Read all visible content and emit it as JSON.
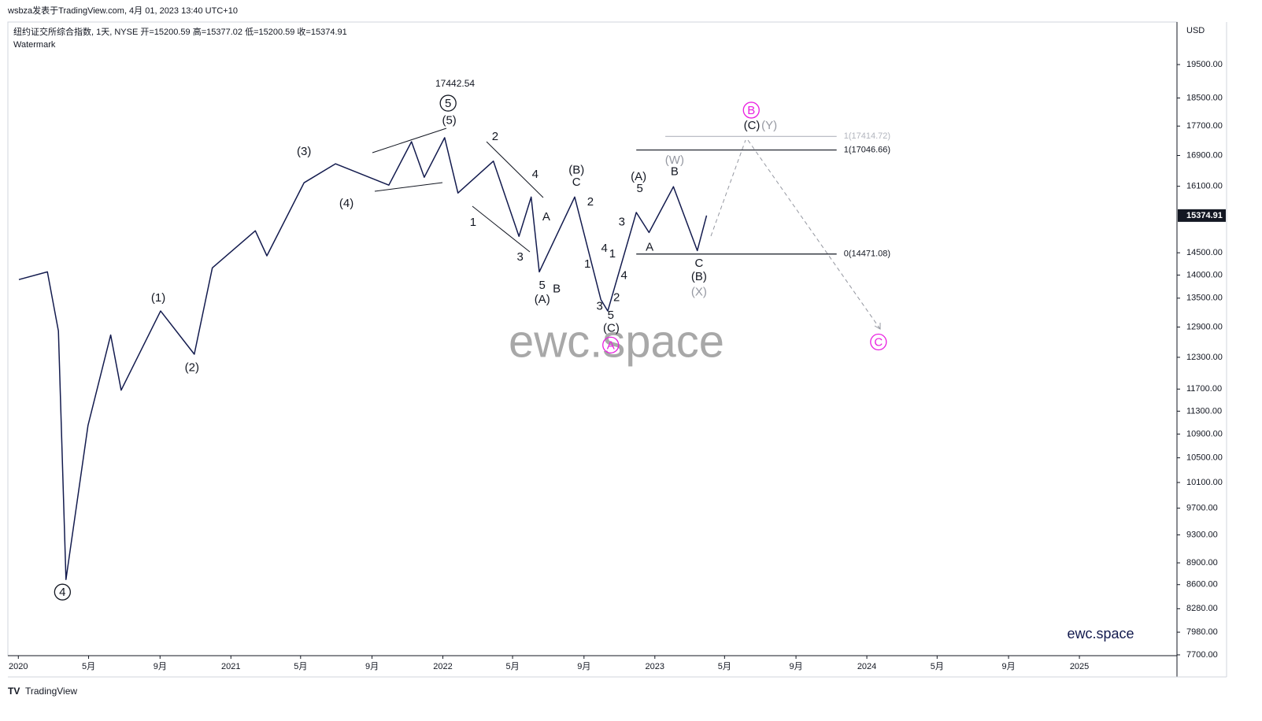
{
  "chart_data": {
    "type": "line",
    "source": "wsbza发表于TradingView.com, 4月 01, 2023 13:40 UTC+10",
    "title": "纽约证交所综合指数, 1天, NYSE  开=15200.59  高=15377.02  低=15200.59  收=15374.91",
    "subtitle": "Watermark",
    "currency": "USD",
    "watermark": "ewc.space",
    "brand": "ewc.space",
    "footer": "TradingView",
    "log_scale": true,
    "grid": false,
    "series": [
      {
        "name": "NYSE",
        "color": "#131b4e",
        "x": [
          "2020-01-02",
          "2020-02-20",
          "2020-03-10",
          "2020-03-23",
          "2020-04-30",
          "2020-06-08",
          "2020-06-26",
          "2020-09-02",
          "2020-10-30",
          "2020-11-30",
          "2021-02-12",
          "2021-03-04",
          "2021-05-07",
          "2021-06-30",
          "2021-09-30",
          "2021-11-08",
          "2021-11-30",
          "2022-01-04",
          "2022-01-27",
          "2022-03-29",
          "2022-05-12",
          "2022-06-02",
          "2022-06-16",
          "2022-08-16",
          "2022-09-30",
          "2022-10-12",
          "2022-11-30",
          "2022-12-22",
          "2023-02-02",
          "2023-03-15",
          "2023-03-31"
        ],
        "values": [
          13900,
          14070,
          12820,
          8670,
          11050,
          12740,
          11680,
          13230,
          12360,
          14160,
          15010,
          14430,
          16190,
          16680,
          16130,
          17270,
          16330,
          17380,
          15930,
          16750,
          14880,
          15830,
          14070,
          15830,
          13470,
          13230,
          15450,
          14970,
          16090,
          14550,
          15374.91
        ]
      }
    ],
    "last_price": 15374.91,
    "levels": [
      {
        "label": "1(17414.72)",
        "value": 17414.72,
        "from": "2023-01-19",
        "to": "2023-11-10",
        "color": "#b2b5be"
      },
      {
        "label": "1(17046.66)",
        "value": 17046.66,
        "from": "2022-11-30",
        "to": "2023-11-10",
        "color": "#131722"
      },
      {
        "label": "0(14471.08)",
        "value": 14471.08,
        "from": "2022-11-30",
        "to": "2023-11-10",
        "color": "#131722"
      }
    ],
    "annotations": [
      {
        "text": "5",
        "x": "2022-01-10",
        "y": 18350,
        "style": "circle",
        "color": "#131722"
      },
      {
        "text": "17442.54",
        "x": "2022-01-22",
        "y": 18930,
        "style": "plain",
        "color": "#131722"
      },
      {
        "text": "(5)",
        "x": "2022-01-12",
        "y": 17870,
        "style": "plain",
        "color": "#131722"
      },
      {
        "text": "(3)",
        "x": "2021-05-07",
        "y": 17020,
        "style": "plain",
        "color": "#131722"
      },
      {
        "text": "(4)",
        "x": "2021-07-19",
        "y": 15680,
        "style": "plain",
        "color": "#131722"
      },
      {
        "text": "(1)",
        "x": "2020-08-29",
        "y": 13510,
        "style": "plain",
        "color": "#131722"
      },
      {
        "text": "(2)",
        "x": "2020-10-26",
        "y": 12110,
        "style": "plain",
        "color": "#131722"
      },
      {
        "text": "4",
        "x": "2020-03-17",
        "y": 8500,
        "style": "circle",
        "color": "#131722"
      },
      {
        "text": "2",
        "x": "2022-04-01",
        "y": 17420,
        "style": "plain",
        "color": "#131722"
      },
      {
        "text": "1",
        "x": "2022-02-22",
        "y": 15220,
        "style": "plain",
        "color": "#131722"
      },
      {
        "text": "4",
        "x": "2022-06-09",
        "y": 16410,
        "style": "plain",
        "color": "#131722"
      },
      {
        "text": "A",
        "x": "2022-06-28",
        "y": 15350,
        "style": "plain",
        "color": "#131722"
      },
      {
        "text": "3",
        "x": "2022-05-14",
        "y": 14410,
        "style": "plain",
        "color": "#131722"
      },
      {
        "text": "5",
        "x": "2022-06-21",
        "y": 13780,
        "style": "plain",
        "color": "#131722"
      },
      {
        "text": "(A)",
        "x": "2022-06-21",
        "y": 13480,
        "style": "plain",
        "color": "#131722"
      },
      {
        "text": "B",
        "x": "2022-07-16",
        "y": 13710,
        "style": "plain",
        "color": "#131722"
      },
      {
        "text": "(B)",
        "x": "2022-08-19",
        "y": 16530,
        "style": "plain",
        "color": "#131722"
      },
      {
        "text": "C",
        "x": "2022-08-19",
        "y": 16210,
        "style": "plain",
        "color": "#131722"
      },
      {
        "text": "2",
        "x": "2022-09-12",
        "y": 15720,
        "style": "plain",
        "color": "#131722"
      },
      {
        "text": "1",
        "x": "2022-09-07",
        "y": 14250,
        "style": "plain",
        "color": "#131722"
      },
      {
        "text": "4",
        "x": "2022-10-06",
        "y": 14610,
        "style": "plain",
        "color": "#131722"
      },
      {
        "text": "3",
        "x": "2022-09-28",
        "y": 13340,
        "style": "plain",
        "color": "#131722"
      },
      {
        "text": "1",
        "x": "2022-10-20",
        "y": 14480,
        "style": "plain",
        "color": "#131722"
      },
      {
        "text": "2",
        "x": "2022-10-27",
        "y": 13520,
        "style": "plain",
        "color": "#131722"
      },
      {
        "text": "5",
        "x": "2022-10-17",
        "y": 13150,
        "style": "plain",
        "color": "#131722"
      },
      {
        "text": "(C)",
        "x": "2022-10-18",
        "y": 12880,
        "style": "plain",
        "color": "#131722"
      },
      {
        "text": "A",
        "x": "2022-10-17",
        "y": 12540,
        "style": "circle",
        "color": "#e91ee0"
      },
      {
        "text": "3",
        "x": "2022-11-05",
        "y": 15230,
        "style": "plain",
        "color": "#131722"
      },
      {
        "text": "4",
        "x": "2022-11-09",
        "y": 14000,
        "style": "plain",
        "color": "#131722"
      },
      {
        "text": "(A)",
        "x": "2022-12-04",
        "y": 16350,
        "style": "plain",
        "color": "#131722"
      },
      {
        "text": "5",
        "x": "2022-12-06",
        "y": 16050,
        "style": "plain",
        "color": "#131722"
      },
      {
        "text": "A",
        "x": "2022-12-23",
        "y": 14640,
        "style": "plain",
        "color": "#131722"
      },
      {
        "text": "(W)",
        "x": "2023-02-04",
        "y": 16790,
        "style": "plain",
        "color": "#9598a1"
      },
      {
        "text": "B",
        "x": "2023-02-04",
        "y": 16490,
        "style": "plain",
        "color": "#131722"
      },
      {
        "text": "C",
        "x": "2023-03-18",
        "y": 14270,
        "style": "plain",
        "color": "#131722"
      },
      {
        "text": "(B)",
        "x": "2023-03-18",
        "y": 13970,
        "style": "plain",
        "color": "#131722"
      },
      {
        "text": "(X)",
        "x": "2023-03-18",
        "y": 13640,
        "style": "plain",
        "color": "#9598a1"
      },
      {
        "text": "B",
        "x": "2023-06-16",
        "y": 18150,
        "style": "circle",
        "color": "#e91ee0"
      },
      {
        "text": "(C)",
        "x": "2023-06-17",
        "y": 17730,
        "style": "plain",
        "color": "#131722"
      },
      {
        "text": "(Y)",
        "x": "2023-07-17",
        "y": 17730,
        "style": "plain",
        "color": "#9598a1"
      },
      {
        "text": "C",
        "x": "2024-01-21",
        "y": 12600,
        "style": "circle",
        "color": "#e91ee0"
      }
    ],
    "xlim": [
      "2019-12-14",
      "2025-06-18"
    ],
    "xticks": [
      {
        "value": "2020-01-01",
        "label": "2020"
      },
      {
        "value": "2020-05-01",
        "label": "5月"
      },
      {
        "value": "2020-09-01",
        "label": "9月"
      },
      {
        "value": "2021-01-01",
        "label": "2021"
      },
      {
        "value": "2021-05-01",
        "label": "5月"
      },
      {
        "value": "2021-09-01",
        "label": "9月"
      },
      {
        "value": "2022-01-01",
        "label": "2022"
      },
      {
        "value": "2022-05-01",
        "label": "5月"
      },
      {
        "value": "2022-09-01",
        "label": "9月"
      },
      {
        "value": "2023-01-01",
        "label": "2023"
      },
      {
        "value": "2023-05-01",
        "label": "5月"
      },
      {
        "value": "2023-09-01",
        "label": "9月"
      },
      {
        "value": "2024-01-01",
        "label": "2024"
      },
      {
        "value": "2024-05-01",
        "label": "5月"
      },
      {
        "value": "2024-09-01",
        "label": "9月"
      },
      {
        "value": "2025-01-01",
        "label": "2025"
      }
    ],
    "ylim": [
      7690,
      20850
    ],
    "yticks": [
      {
        "value": 19500,
        "label": "19500.00"
      },
      {
        "value": 18500,
        "label": "18500.00"
      },
      {
        "value": 17700,
        "label": "17700.00"
      },
      {
        "value": 16900,
        "label": "16900.00"
      },
      {
        "value": 16100,
        "label": "16100.00"
      },
      {
        "value": 14500,
        "label": "14500.00"
      },
      {
        "value": 14000,
        "label": "14000.00"
      },
      {
        "value": 13500,
        "label": "13500.00"
      },
      {
        "value": 12900,
        "label": "12900.00"
      },
      {
        "value": 12300,
        "label": "12300.00"
      },
      {
        "value": 11700,
        "label": "11700.00"
      },
      {
        "value": 11300,
        "label": "11300.00"
      },
      {
        "value": 10900,
        "label": "10900.00"
      },
      {
        "value": 10500,
        "label": "10500.00"
      },
      {
        "value": 10100,
        "label": "10100.00"
      },
      {
        "value": 9700,
        "label": "9700.00"
      },
      {
        "value": 9300,
        "label": "9300.00"
      },
      {
        "value": 8900,
        "label": "8900.00"
      },
      {
        "value": 8600,
        "label": "8600.00"
      },
      {
        "value": 8280,
        "label": "8280.00"
      },
      {
        "value": 7980,
        "label": "7980.00"
      },
      {
        "value": 7700,
        "label": "7700.00"
      }
    ]
  }
}
